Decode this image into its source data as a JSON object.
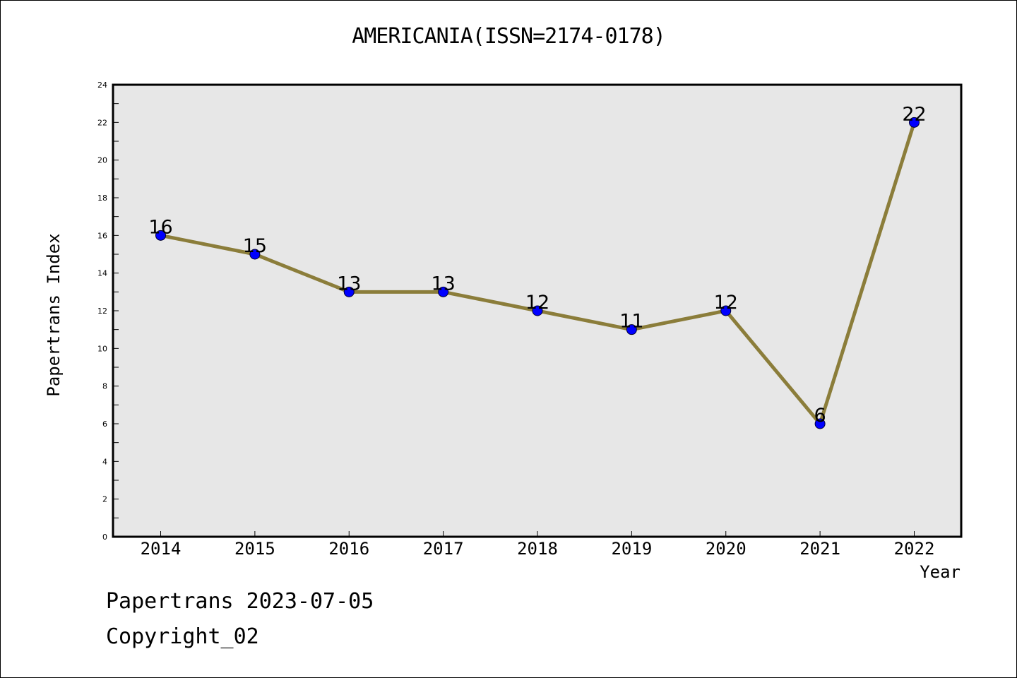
{
  "chart_data": {
    "type": "line",
    "title": "AMERICANIA(ISSN=2174-0178)",
    "xlabel": "Year",
    "ylabel": "Papertrans Index",
    "categories": [
      "2014",
      "2015",
      "2016",
      "2017",
      "2018",
      "2019",
      "2020",
      "2021",
      "2022"
    ],
    "values": [
      16,
      15,
      13,
      13,
      12,
      11,
      12,
      6,
      22
    ],
    "ylim": [
      0,
      24
    ],
    "yticks": [
      0,
      2,
      4,
      6,
      8,
      10,
      12,
      14,
      16,
      18,
      20,
      22,
      24
    ],
    "grid": false,
    "data_labels": true,
    "colors": {
      "line": "#8B7D3A",
      "marker": "#0000FF",
      "plot_background": "#E7E7E7"
    }
  },
  "footer": {
    "date_line": "Papertrans 2023-07-05",
    "copyright_line": "Copyright_02"
  }
}
